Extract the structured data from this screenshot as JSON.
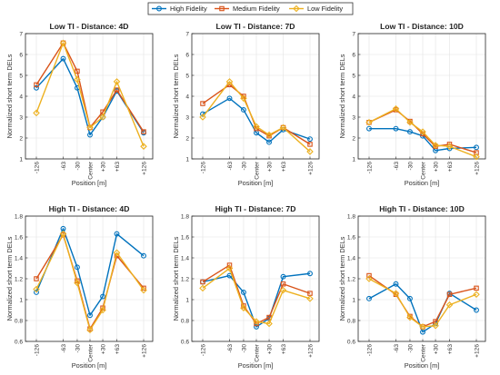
{
  "chart_data": {
    "type": "line",
    "legend": {
      "placement": "top-center",
      "entries": [
        {
          "name": "High Fidelity",
          "color": "#0072BD",
          "marker": "circle"
        },
        {
          "name": "Medium Fidelity",
          "color": "#D95319",
          "marker": "square"
        },
        {
          "name": "Low Fidelity",
          "color": "#EDB120",
          "marker": "diamond"
        }
      ]
    },
    "x_categories": [
      "-126",
      "-63",
      "-30",
      "Center",
      "+30",
      "+63",
      "+126"
    ],
    "x_positions": [
      -126,
      -63,
      -30,
      0,
      30,
      63,
      126
    ],
    "grid": true,
    "panels": [
      {
        "title": "Low TI - Distance: 4D",
        "xlabel": "Position [m]",
        "ylabel": "Normalized short term DELs",
        "ylim": [
          1,
          7
        ],
        "yticks": [
          1,
          2,
          3,
          4,
          5,
          6,
          7
        ],
        "ytick_labels": [
          "1",
          "2",
          "3",
          "4",
          "5",
          "6",
          "7"
        ],
        "series": [
          {
            "name": "High Fidelity",
            "values": [
              4.4,
              5.8,
              4.4,
              2.15,
              3.0,
              4.25,
              2.25
            ]
          },
          {
            "name": "Medium Fidelity",
            "values": [
              4.55,
              6.55,
              5.2,
              2.5,
              3.25,
              4.3,
              2.3
            ]
          },
          {
            "name": "Low Fidelity",
            "values": [
              3.2,
              6.55,
              4.8,
              2.5,
              3.0,
              4.7,
              1.6
            ]
          }
        ]
      },
      {
        "title": "Low TI - Distance: 7D",
        "xlabel": "Position [m]",
        "ylabel": "Normalized short term DELs",
        "ylim": [
          1,
          7
        ],
        "yticks": [
          1,
          2,
          3,
          4,
          5,
          6,
          7
        ],
        "ytick_labels": [
          "1",
          "2",
          "3",
          "4",
          "5",
          "6",
          "7"
        ],
        "series": [
          {
            "name": "High Fidelity",
            "values": [
              3.15,
              3.9,
              3.35,
              2.25,
              1.8,
              2.4,
              1.95
            ]
          },
          {
            "name": "Medium Fidelity",
            "values": [
              3.65,
              4.55,
              4.0,
              2.45,
              2.1,
              2.5,
              1.7
            ]
          },
          {
            "name": "Low Fidelity",
            "values": [
              3.0,
              4.7,
              3.9,
              2.55,
              2.15,
              2.5,
              1.35
            ]
          }
        ]
      },
      {
        "title": "Low TI - Distance: 10D",
        "xlabel": "Position [m]",
        "ylabel": "Normalized short term DELs",
        "ylim": [
          1,
          7
        ],
        "yticks": [
          1,
          2,
          3,
          4,
          5,
          6,
          7
        ],
        "ytick_labels": [
          "1",
          "2",
          "3",
          "4",
          "5",
          "6",
          "7"
        ],
        "series": [
          {
            "name": "High Fidelity",
            "values": [
              2.45,
              2.45,
              2.3,
              2.1,
              1.4,
              1.5,
              1.55
            ]
          },
          {
            "name": "Medium Fidelity",
            "values": [
              2.75,
              3.35,
              2.8,
              2.2,
              1.6,
              1.7,
              1.3
            ]
          },
          {
            "name": "Low Fidelity",
            "values": [
              2.75,
              3.4,
              2.75,
              2.3,
              1.65,
              1.6,
              1.1
            ]
          }
        ]
      },
      {
        "title": "High TI - Distance: 4D",
        "xlabel": "Position [m]",
        "ylabel": "Normalized short term DELs",
        "ylim": [
          0.6,
          1.8
        ],
        "yticks": [
          0.6,
          0.8,
          1.0,
          1.2,
          1.4,
          1.6,
          1.8
        ],
        "ytick_labels": [
          "0.6",
          "0.8",
          "1",
          "1.2",
          "1.4",
          "1.6",
          "1.8"
        ],
        "series": [
          {
            "name": "High Fidelity",
            "values": [
              1.07,
              1.68,
              1.31,
              0.85,
              1.03,
              1.63,
              1.42
            ]
          },
          {
            "name": "Medium Fidelity",
            "values": [
              1.2,
              1.62,
              1.18,
              0.72,
              0.92,
              1.42,
              1.11
            ]
          },
          {
            "name": "Low Fidelity",
            "values": [
              1.1,
              1.63,
              1.16,
              0.71,
              0.9,
              1.45,
              1.09
            ]
          }
        ]
      },
      {
        "title": "High TI - Distance: 7D",
        "xlabel": "Position [m]",
        "ylabel": "Normalized short term DELs",
        "ylim": [
          0.6,
          1.8
        ],
        "yticks": [
          0.6,
          0.8,
          1.0,
          1.2,
          1.4,
          1.6,
          1.8
        ],
        "ytick_labels": [
          "0.6",
          "0.8",
          "1",
          "1.2",
          "1.4",
          "1.6",
          "1.8"
        ],
        "series": [
          {
            "name": "High Fidelity",
            "values": [
              1.17,
              1.23,
              1.07,
              0.74,
              0.82,
              1.22,
              1.25
            ]
          },
          {
            "name": "Medium Fidelity",
            "values": [
              1.17,
              1.33,
              0.94,
              0.77,
              0.83,
              1.15,
              1.06
            ]
          },
          {
            "name": "Low Fidelity",
            "values": [
              1.11,
              1.3,
              0.92,
              0.79,
              0.77,
              1.09,
              1.01
            ]
          }
        ]
      },
      {
        "title": "High TI - Distance: 10D",
        "xlabel": "Position [m]",
        "ylabel": "Normalized short term DELs",
        "ylim": [
          0.6,
          1.8
        ],
        "yticks": [
          0.6,
          0.8,
          1.0,
          1.2,
          1.4,
          1.6,
          1.8
        ],
        "ytick_labels": [
          "0.6",
          "0.8",
          "1",
          "1.2",
          "1.4",
          "1.6",
          "1.8"
        ],
        "series": [
          {
            "name": "High Fidelity",
            "values": [
              1.01,
              1.15,
              1.01,
              0.69,
              0.77,
              1.06,
              0.9
            ]
          },
          {
            "name": "Medium Fidelity",
            "values": [
              1.23,
              1.05,
              0.84,
              0.74,
              0.79,
              1.05,
              1.11
            ]
          },
          {
            "name": "Low Fidelity",
            "values": [
              1.2,
              1.06,
              0.83,
              0.74,
              0.75,
              0.95,
              1.05
            ]
          }
        ]
      }
    ]
  }
}
